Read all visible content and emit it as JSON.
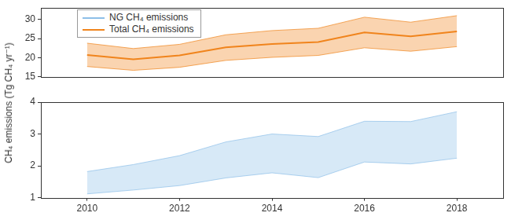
{
  "chart_data": {
    "type": "line",
    "ylabel": "CH₄ emissions (Tg CH₄ yr⁻¹)",
    "x": [
      2010,
      2011,
      2012,
      2013,
      2014,
      2015,
      2016,
      2017,
      2018
    ],
    "xlim": [
      2009,
      2019
    ],
    "xticks": [
      2010,
      2012,
      2014,
      2016,
      2018
    ],
    "ylim": [
      1,
      4
    ],
    "yticks": [
      1,
      2,
      3,
      4
    ],
    "y2lim": [
      15,
      33
    ],
    "y2ticks": [
      15,
      20,
      25,
      30
    ],
    "grid": false,
    "legend": "upper left",
    "series": [
      {
        "name": "NG CH₄ emissions",
        "type": "range",
        "color": "#8dbfe8",
        "axis": "y",
        "lower": [
          1.12,
          1.24,
          1.38,
          1.62,
          1.78,
          1.63,
          2.12,
          2.06,
          2.24
        ],
        "upper": [
          1.82,
          2.04,
          2.32,
          2.75,
          3.0,
          2.92,
          3.4,
          3.39,
          3.7
        ]
      },
      {
        "name": "Total CH₄ emissions",
        "color": "#f0841c",
        "axis": "y2",
        "values": [
          20.7,
          19.6,
          20.6,
          22.7,
          23.6,
          24.1,
          26.6,
          25.6,
          26.9
        ],
        "lower": [
          17.7,
          16.7,
          17.5,
          19.3,
          20.1,
          20.6,
          22.6,
          21.7,
          22.9
        ],
        "upper": [
          23.8,
          22.4,
          23.5,
          26.0,
          27.1,
          27.7,
          30.6,
          29.3,
          31.0
        ]
      }
    ]
  }
}
